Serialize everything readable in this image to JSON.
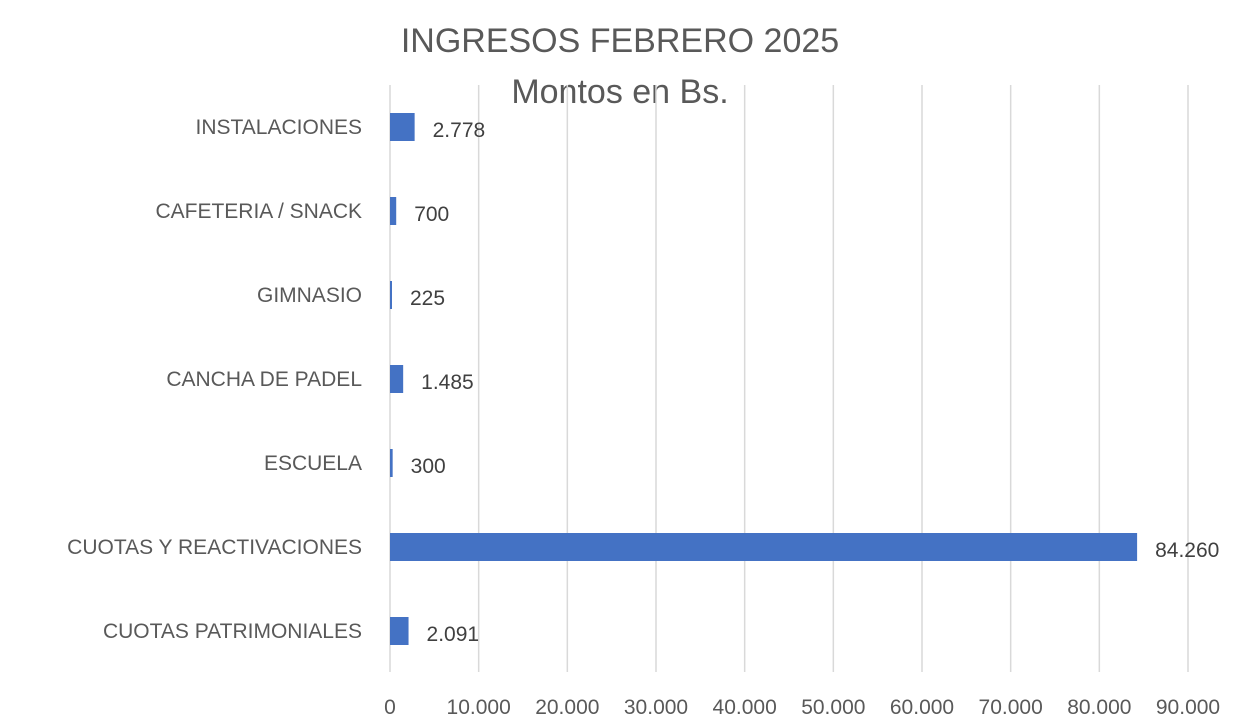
{
  "chart_data": {
    "type": "bar",
    "orientation": "horizontal",
    "title": "INGRESOS FEBRERO 2025",
    "subtitle": "Montos en Bs.",
    "categories": [
      "INSTALACIONES",
      "CAFETERIA / SNACK",
      "GIMNASIO",
      "CANCHA DE PADEL",
      "ESCUELA",
      "CUOTAS Y REACTIVACIONES",
      "CUOTAS PATRIMONIALES"
    ],
    "values": [
      2778,
      700,
      225,
      1485,
      300,
      84260,
      2091
    ],
    "data_labels": [
      "2.778",
      "700",
      "225",
      "1.485",
      "300",
      "84.260",
      "2.091"
    ],
    "xlim": [
      0,
      90000
    ],
    "x_ticks": [
      0,
      10000,
      20000,
      30000,
      40000,
      50000,
      60000,
      70000,
      80000,
      90000
    ],
    "x_tick_labels": [
      "0",
      "10.000",
      "20.000",
      "30.000",
      "40.000",
      "50.000",
      "60.000",
      "70.000",
      "80.000",
      "90.000"
    ],
    "grid": true,
    "legend": "none",
    "bar_color": "#4472C4"
  }
}
